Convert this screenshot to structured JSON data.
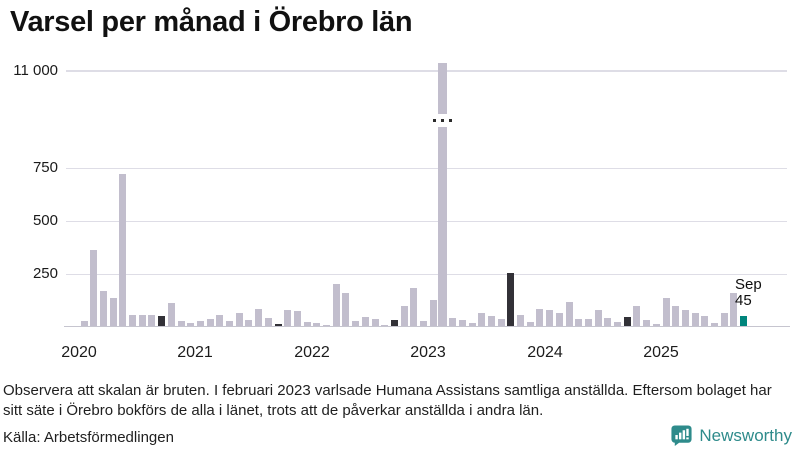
{
  "title": "Varsel per månad i Örebro län",
  "chart_data": {
    "type": "bar",
    "title": "Varsel per månad i Örebro län",
    "ylabel": "",
    "xlabel": "",
    "broken_axis": true,
    "yticks": [
      {
        "label": "11 000",
        "value": 11000
      },
      {
        "label": "750",
        "value": 750
      },
      {
        "label": "500",
        "value": 500
      },
      {
        "label": "250",
        "value": 250
      }
    ],
    "year_labels": [
      "2020",
      "2021",
      "2022",
      "2023",
      "2024",
      "2025"
    ],
    "colors": {
      "base": "#c2becd",
      "dark": "#323137",
      "current": "#00857c"
    },
    "annotation": {
      "month": "Sep",
      "value": "45"
    },
    "series": [
      {
        "month": "2020-01",
        "value": 25,
        "highlight": "none"
      },
      {
        "month": "2020-02",
        "value": 360,
        "highlight": "none"
      },
      {
        "month": "2020-03",
        "value": 165,
        "highlight": "none"
      },
      {
        "month": "2020-04",
        "value": 130,
        "highlight": "none"
      },
      {
        "month": "2020-05",
        "value": 715,
        "highlight": "none"
      },
      {
        "month": "2020-06",
        "value": 50,
        "highlight": "none"
      },
      {
        "month": "2020-07",
        "value": 50,
        "highlight": "none"
      },
      {
        "month": "2020-08",
        "value": 50,
        "highlight": "none"
      },
      {
        "month": "2020-09",
        "value": 48,
        "highlight": "dark"
      },
      {
        "month": "2020-10",
        "value": 110,
        "highlight": "none"
      },
      {
        "month": "2020-11",
        "value": 23,
        "highlight": "none"
      },
      {
        "month": "2020-12",
        "value": 15,
        "highlight": "none"
      },
      {
        "month": "2021-01",
        "value": 24,
        "highlight": "none"
      },
      {
        "month": "2021-02",
        "value": 31,
        "highlight": "none"
      },
      {
        "month": "2021-03",
        "value": 52,
        "highlight": "none"
      },
      {
        "month": "2021-04",
        "value": 24,
        "highlight": "none"
      },
      {
        "month": "2021-05",
        "value": 63,
        "highlight": "none"
      },
      {
        "month": "2021-06",
        "value": 28,
        "highlight": "none"
      },
      {
        "month": "2021-07",
        "value": 82,
        "highlight": "none"
      },
      {
        "month": "2021-08",
        "value": 40,
        "highlight": "none"
      },
      {
        "month": "2021-09",
        "value": 8,
        "highlight": "dark"
      },
      {
        "month": "2021-10",
        "value": 75,
        "highlight": "none"
      },
      {
        "month": "2021-11",
        "value": 71,
        "highlight": "none"
      },
      {
        "month": "2021-12",
        "value": 19,
        "highlight": "none"
      },
      {
        "month": "2022-01",
        "value": 13,
        "highlight": "none"
      },
      {
        "month": "2022-02",
        "value": 5,
        "highlight": "none"
      },
      {
        "month": "2022-03",
        "value": 196,
        "highlight": "none"
      },
      {
        "month": "2022-04",
        "value": 157,
        "highlight": "none"
      },
      {
        "month": "2022-05",
        "value": 22,
        "highlight": "none"
      },
      {
        "month": "2022-06",
        "value": 44,
        "highlight": "none"
      },
      {
        "month": "2022-07",
        "value": 31,
        "highlight": "none"
      },
      {
        "month": "2022-08",
        "value": 5,
        "highlight": "none"
      },
      {
        "month": "2022-09",
        "value": 28,
        "highlight": "dark"
      },
      {
        "month": "2022-10",
        "value": 94,
        "highlight": "none"
      },
      {
        "month": "2022-11",
        "value": 180,
        "highlight": "none"
      },
      {
        "month": "2022-12",
        "value": 25,
        "highlight": "none"
      },
      {
        "month": "2023-01",
        "value": 125,
        "highlight": "none"
      },
      {
        "month": "2023-02",
        "value": 11000,
        "highlight": "none"
      },
      {
        "month": "2023-03",
        "value": 39,
        "highlight": "none"
      },
      {
        "month": "2023-04",
        "value": 28,
        "highlight": "none"
      },
      {
        "month": "2023-05",
        "value": 13,
        "highlight": "none"
      },
      {
        "month": "2023-06",
        "value": 60,
        "highlight": "none"
      },
      {
        "month": "2023-07",
        "value": 47,
        "highlight": "none"
      },
      {
        "month": "2023-08",
        "value": 34,
        "highlight": "none"
      },
      {
        "month": "2023-09",
        "value": 250,
        "highlight": "dark"
      },
      {
        "month": "2023-10",
        "value": 54,
        "highlight": "none"
      },
      {
        "month": "2023-11",
        "value": 20,
        "highlight": "none"
      },
      {
        "month": "2023-12",
        "value": 80,
        "highlight": "none"
      },
      {
        "month": "2024-01",
        "value": 77,
        "highlight": "none"
      },
      {
        "month": "2024-02",
        "value": 61,
        "highlight": "none"
      },
      {
        "month": "2024-03",
        "value": 115,
        "highlight": "none"
      },
      {
        "month": "2024-04",
        "value": 31,
        "highlight": "none"
      },
      {
        "month": "2024-05",
        "value": 34,
        "highlight": "none"
      },
      {
        "month": "2024-06",
        "value": 74,
        "highlight": "none"
      },
      {
        "month": "2024-07",
        "value": 38,
        "highlight": "none"
      },
      {
        "month": "2024-08",
        "value": 18,
        "highlight": "none"
      },
      {
        "month": "2024-09",
        "value": 43,
        "highlight": "dark"
      },
      {
        "month": "2024-10",
        "value": 95,
        "highlight": "none"
      },
      {
        "month": "2024-11",
        "value": 28,
        "highlight": "none"
      },
      {
        "month": "2024-12",
        "value": 10,
        "highlight": "none"
      },
      {
        "month": "2025-01",
        "value": 130,
        "highlight": "none"
      },
      {
        "month": "2025-02",
        "value": 95,
        "highlight": "none"
      },
      {
        "month": "2025-03",
        "value": 76,
        "highlight": "none"
      },
      {
        "month": "2025-04",
        "value": 60,
        "highlight": "none"
      },
      {
        "month": "2025-05",
        "value": 47,
        "highlight": "none"
      },
      {
        "month": "2025-06",
        "value": 13,
        "highlight": "none"
      },
      {
        "month": "2025-07",
        "value": 60,
        "highlight": "none"
      },
      {
        "month": "2025-08",
        "value": 155,
        "highlight": "none"
      },
      {
        "month": "2025-09",
        "value": 45,
        "highlight": "current"
      }
    ]
  },
  "footnote": {
    "lines": [
      "Observera att skalan är bruten. I februari 2023 varlsade Humana Assistans samtliga anställda. Eftersom bolaget har",
      "sitt säte i Örebro bokförs de alla i länet, trots att de påverkar anställda i andra län."
    ]
  },
  "source": "Källa: Arbetsförmedlingen",
  "brand": {
    "name": "Newsworthy",
    "color": "#2e8b8b"
  }
}
